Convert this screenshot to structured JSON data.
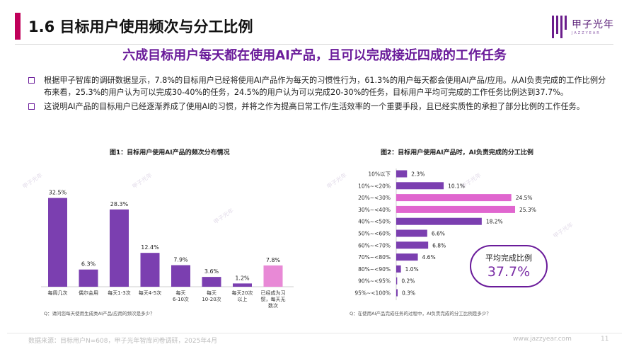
{
  "header": {
    "title": "1.6 目标用户使用频次与分工比例",
    "logo_text": "甲子光年",
    "logo_sub": "JAZZYEAR",
    "accent_color": "#c0005a"
  },
  "subtitle": "六成目标用户每天都在使用AI产品，且可以完成接近四成的工作任务",
  "bullets": [
    "根据甲子智库的调研数据显示，7.8%的目标用户已经将使用AI产品作为每天的习惯性行为，61.3%的用户每天都会使用AI产品/应用。从AI负责完成的工作比例分布来看，25.3%的用户认为可以完成30-40%的任务，24.5%的用户认为可以完成20-30%的任务，目标用户平均可完成的工作任务比例达到37.7%。",
    "这说明AI产品的目标用户已经逐渐养成了使用AI的习惯，并将之作为提高日常工作/生活效率的一个重要手段，且已经实质性的承担了部分比例的工作任务。"
  ],
  "watermark": "甲子光年",
  "chart_data": [
    {
      "type": "bar",
      "title": "图1：目标用户使用AI产品的频次分布情况",
      "note": "Q：请问您每天使用生成类AI产品/应用的频次是多少？",
      "categories": [
        [
          "每周几次"
        ],
        [
          "偶尔会用"
        ],
        [
          "每天1-3次"
        ],
        [
          "每天4-5次"
        ],
        [
          "每天",
          "6-10次"
        ],
        [
          "每天",
          "10-20次"
        ],
        [
          "每天20次",
          "以上"
        ],
        [
          "已经成为习",
          "惯，每天无",
          "数次"
        ]
      ],
      "values": [
        32.5,
        6.3,
        28.3,
        12.4,
        7.9,
        3.6,
        1.2,
        7.8
      ],
      "value_labels": [
        "32.5%",
        "6.3%",
        "28.3%",
        "12.4%",
        "7.9%",
        "3.6%",
        "1.2%",
        "7.8%"
      ],
      "colors": [
        "#7b3fb0",
        "#7b3fb0",
        "#7b3fb0",
        "#7b3fb0",
        "#7b3fb0",
        "#7b3fb0",
        "#7b3fb0",
        "#e889d6"
      ],
      "ylim": [
        0,
        35
      ]
    },
    {
      "type": "bar",
      "orientation": "horizontal",
      "title": "图2：目标用户使用AI产品时，AI负责完成的分工比例",
      "note": "Q：在使用AI产品完成任务的过程中，AI负责完成的分工比例是多少？",
      "categories": [
        "10%以下",
        "10%~<20%",
        "20%~<30%",
        "30%~<40%",
        "40%~<50%",
        "50%~<60%",
        "60%~<70%",
        "70%~<80%",
        "80%~<90%",
        "90%~<95%",
        "95%~<100%"
      ],
      "values": [
        2.3,
        10.1,
        24.5,
        25.3,
        18.2,
        6.6,
        6.8,
        4.6,
        1.0,
        0.2,
        0.3
      ],
      "value_labels": [
        "2.3%",
        "10.1%",
        "24.5%",
        "25.3%",
        "18.2%",
        "6.6%",
        "6.8%",
        "4.6%",
        "1.0%",
        "0.2%",
        "0.3%"
      ],
      "colors": [
        "#7b3fb0",
        "#7b3fb0",
        "#e066cf",
        "#e066cf",
        "#7b3fb0",
        "#7b3fb0",
        "#7b3fb0",
        "#7b3fb0",
        "#7b3fb0",
        "#7b3fb0",
        "#7b3fb0"
      ],
      "xlim": [
        0,
        26
      ],
      "average_label": "平均完成比例",
      "average_value": "37.7%"
    }
  ],
  "footer": {
    "source": "数据来源：目标用户N=608，甲子光年智库问卷调研，2025年4月",
    "url": "www.jazzyear.com",
    "page": "11"
  }
}
